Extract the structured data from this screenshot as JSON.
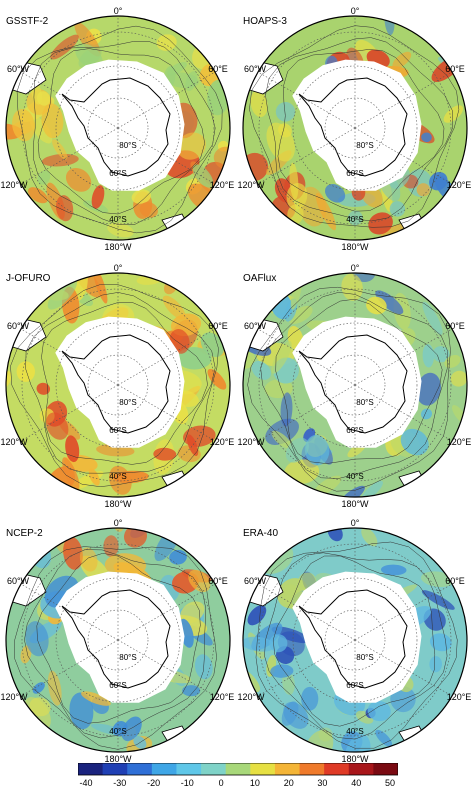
{
  "panels": [
    {
      "title": "GSSTF-2",
      "palette": "warm",
      "labels": {
        "top": "0°",
        "ne": "60°E",
        "nw": "60°W",
        "e": "120°E",
        "w": "120°W",
        "bottom": "180°W",
        "lat80": "80°S",
        "lat60": "60°S",
        "lat40": "40°S"
      }
    },
    {
      "title": "HOAPS-3",
      "palette": "noisy",
      "labels": {
        "top": "0°",
        "ne": "60°E",
        "nw": "60°W",
        "e": "120°E",
        "w": "120°W",
        "bottom": "180°W",
        "lat80": "80°S",
        "lat60": "60°S",
        "lat40": "40°S"
      }
    },
    {
      "title": "J-OFURO",
      "palette": "yellow",
      "labels": {
        "top": "0°",
        "ne": "60°E",
        "nw": "60°W",
        "e": "120°E",
        "w": "120°W",
        "bottom": "180°W",
        "lat80": "80°S",
        "lat60": "60°S",
        "lat40": "40°S"
      }
    },
    {
      "title": "OAFlux",
      "palette": "green",
      "labels": {
        "top": "0°",
        "ne": "60°E",
        "nw": "60°W",
        "e": "120°E",
        "w": "120°W",
        "bottom": "180°W",
        "lat80": "80°S",
        "lat60": "60°S",
        "lat40": "40°S"
      }
    },
    {
      "title": "NCEP-2",
      "palette": "mixed",
      "labels": {
        "top": "0°",
        "ne": "60°E",
        "nw": "60°W",
        "e": "120°E",
        "w": "120°W",
        "bottom": "180°W",
        "lat80": "80°S",
        "lat60": "60°S",
        "lat40": "40°S"
      }
    },
    {
      "title": "ERA-40",
      "palette": "cool",
      "labels": {
        "top": "0°",
        "ne": "60°E",
        "nw": "60°W",
        "e": "120°E",
        "w": "120°W",
        "bottom": "180°W",
        "lat80": "80°S",
        "lat60": "60°S",
        "lat40": "40°S"
      }
    }
  ],
  "colorbar": {
    "ticks": [
      "-40",
      "-30",
      "-20",
      "-10",
      "0",
      "10",
      "20",
      "30",
      "40",
      "50"
    ],
    "colors": [
      "#1a237e",
      "#1f3fb4",
      "#2f6fd6",
      "#3fa6e6",
      "#5fc7e8",
      "#7fd3c8",
      "#a8d87a",
      "#e6e043",
      "#f4b537",
      "#ef7a2b",
      "#df3a26",
      "#a8161a",
      "#7a0a12"
    ]
  }
}
